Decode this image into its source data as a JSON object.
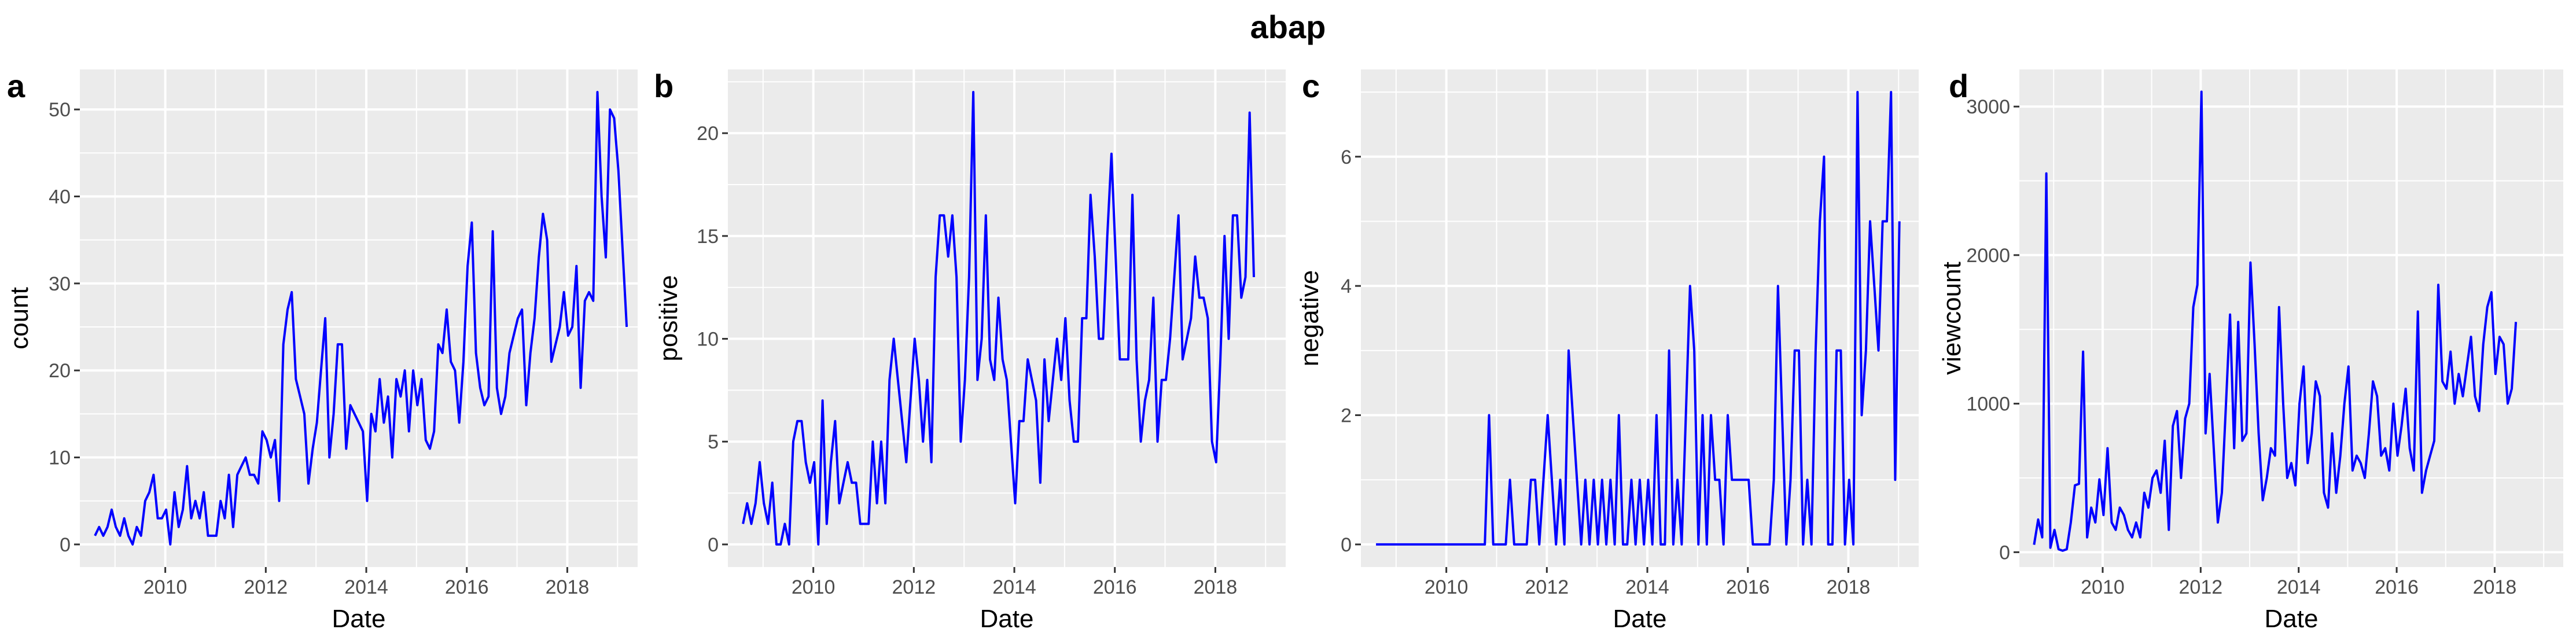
{
  "figure": {
    "title": "abap"
  },
  "chart_data": [
    {
      "type": "line",
      "panel_label": "a",
      "xlabel": "Date",
      "ylabel": "count",
      "x_unit": "year",
      "xlim": [
        2008.3,
        2019.4
      ],
      "ylim": [
        -2.6,
        54.6
      ],
      "x_ticks": [
        2010,
        2012,
        2014,
        2016,
        2018
      ],
      "x_tick_labels": [
        "2010",
        "2012",
        "2014",
        "2016",
        "2018"
      ],
      "y_ticks": [
        0,
        10,
        20,
        30,
        40,
        50
      ],
      "y_tick_labels": [
        "0",
        "10",
        "20",
        "30",
        "40",
        "50"
      ],
      "line_color": "#0000ff",
      "grid": true,
      "series": [
        {
          "x_start": 2008.6,
          "x_step": 0.08333,
          "values": [
            1,
            2,
            1,
            2,
            4,
            2,
            1,
            3,
            1,
            0,
            2,
            1,
            5,
            6,
            8,
            3,
            3,
            4,
            0,
            6,
            2,
            4,
            9,
            3,
            5,
            3,
            6,
            1,
            1,
            1,
            5,
            3,
            8,
            2,
            8,
            9,
            10,
            8,
            8,
            7,
            13,
            12,
            10,
            12,
            5,
            23,
            27,
            29,
            19,
            17,
            15,
            7,
            11,
            14,
            20,
            26,
            10,
            15,
            23,
            23,
            11,
            16,
            15,
            14,
            13,
            5,
            15,
            13,
            19,
            14,
            17,
            10,
            19,
            17,
            20,
            13,
            20,
            16,
            19,
            12,
            11,
            13,
            23,
            22,
            27,
            21,
            20,
            14,
            21,
            32,
            37,
            22,
            18,
            16,
            17,
            36,
            18,
            15,
            17,
            22,
            24,
            26,
            27,
            16,
            22,
            26,
            33,
            38,
            35,
            21,
            23,
            25,
            29,
            24,
            25,
            32,
            18,
            28,
            29,
            28,
            52,
            40,
            33,
            50,
            49,
            43,
            34,
            25
          ]
        }
      ]
    },
    {
      "type": "line",
      "panel_label": "b",
      "xlabel": "Date",
      "ylabel": "positive",
      "x_unit": "year",
      "xlim": [
        2008.3,
        2019.4
      ],
      "ylim": [
        -1.1,
        23.1
      ],
      "x_ticks": [
        2010,
        2012,
        2014,
        2016,
        2018
      ],
      "x_tick_labels": [
        "2010",
        "2012",
        "2014",
        "2016",
        "2018"
      ],
      "y_ticks": [
        0,
        5,
        10,
        15,
        20
      ],
      "y_tick_labels": [
        "0",
        "5",
        "10",
        "15",
        "20"
      ],
      "line_color": "#0000ff",
      "grid": true,
      "series": [
        {
          "x_start": 2008.6,
          "x_step": 0.08333,
          "values": [
            1,
            2,
            1,
            2,
            4,
            2,
            1,
            3,
            0,
            0,
            1,
            0,
            5,
            6,
            6,
            4,
            3,
            4,
            0,
            7,
            1,
            4,
            6,
            2,
            3,
            4,
            3,
            3,
            1,
            1,
            1,
            5,
            2,
            5,
            2,
            8,
            10,
            8,
            6,
            4,
            7,
            10,
            8,
            5,
            8,
            4,
            13,
            16,
            16,
            14,
            16,
            13,
            5,
            8,
            13,
            22,
            8,
            10,
            16,
            9,
            8,
            12,
            9,
            8,
            5,
            2,
            6,
            6,
            9,
            8,
            7,
            3,
            9,
            6,
            8,
            10,
            8,
            11,
            7,
            5,
            5,
            11,
            11,
            17,
            14,
            10,
            10,
            15,
            19,
            14,
            9,
            9,
            9,
            17,
            9,
            5,
            7,
            8,
            12,
            5,
            8,
            8,
            10,
            13,
            16,
            9,
            10,
            11,
            14,
            12,
            12,
            11,
            5,
            4,
            9,
            15,
            10,
            16,
            16,
            12,
            13,
            21,
            13
          ]
        }
      ]
    },
    {
      "type": "line",
      "panel_label": "c",
      "xlabel": "Date",
      "ylabel": "negative",
      "x_unit": "year",
      "xlim": [
        2008.3,
        2019.4
      ],
      "ylim": [
        -0.35,
        7.35
      ],
      "x_ticks": [
        2010,
        2012,
        2014,
        2016,
        2018
      ],
      "x_tick_labels": [
        "2010",
        "2012",
        "2014",
        "2016",
        "2018"
      ],
      "y_ticks": [
        0,
        2,
        4,
        6
      ],
      "y_tick_labels": [
        "0",
        "2",
        "4",
        "6"
      ],
      "line_color": "#0000ff",
      "grid": true,
      "series": [
        {
          "x_start": 2008.6,
          "x_step": 0.08333,
          "values": [
            0,
            0,
            0,
            0,
            0,
            0,
            0,
            0,
            0,
            0,
            0,
            0,
            0,
            0,
            0,
            0,
            0,
            0,
            0,
            0,
            0,
            0,
            0,
            0,
            0,
            0,
            0,
            2,
            0,
            0,
            0,
            0,
            1,
            0,
            0,
            0,
            0,
            1,
            1,
            0,
            1,
            2,
            1,
            0,
            1,
            0,
            3,
            2,
            1,
            0,
            1,
            0,
            1,
            0,
            1,
            0,
            1,
            0,
            2,
            0,
            0,
            1,
            0,
            1,
            0,
            1,
            0,
            2,
            0,
            0,
            3,
            0,
            1,
            0,
            2,
            4,
            3,
            0,
            2,
            0,
            2,
            1,
            1,
            0,
            2,
            1,
            1,
            1,
            1,
            1,
            0,
            0,
            0,
            0,
            0,
            1,
            4,
            2,
            0,
            1,
            3,
            3,
            0,
            1,
            0,
            3,
            5,
            6,
            0,
            0,
            3,
            3,
            0,
            1,
            0,
            7,
            2,
            3,
            5,
            4,
            3,
            5,
            5,
            7,
            1,
            5
          ]
        }
      ]
    },
    {
      "type": "line",
      "panel_label": "d",
      "xlabel": "Date",
      "ylabel": "viewcount",
      "x_unit": "year",
      "xlim": [
        2008.3,
        2019.4
      ],
      "ylim": [
        -100,
        3250
      ],
      "x_ticks": [
        2010,
        2012,
        2014,
        2016,
        2018
      ],
      "x_tick_labels": [
        "2010",
        "2012",
        "2014",
        "2016",
        "2018"
      ],
      "y_ticks": [
        0,
        1000,
        2000,
        3000
      ],
      "y_tick_labels": [
        "0",
        "1000",
        "2000",
        "3000"
      ],
      "line_color": "#0000ff",
      "grid": true,
      "series": [
        {
          "x_start": 2008.6,
          "x_step": 0.08333,
          "values": [
            50,
            220,
            100,
            2550,
            30,
            150,
            20,
            10,
            20,
            200,
            450,
            460,
            1350,
            100,
            300,
            200,
            490,
            250,
            700,
            200,
            150,
            300,
            250,
            150,
            100,
            200,
            100,
            400,
            300,
            500,
            550,
            400,
            750,
            150,
            850,
            950,
            500,
            900,
            1000,
            1650,
            1800,
            3100,
            800,
            1200,
            700,
            200,
            400,
            1000,
            1600,
            700,
            1550,
            750,
            800,
            1950,
            1400,
            800,
            350,
            500,
            700,
            650,
            1650,
            1000,
            500,
            600,
            450,
            1000,
            1250,
            600,
            800,
            1150,
            1050,
            400,
            300,
            800,
            400,
            650,
            1000,
            1250,
            550,
            650,
            600,
            500,
            800,
            1150,
            1050,
            650,
            700,
            550,
            1000,
            650,
            850,
            1100,
            700,
            550,
            1620,
            400,
            550,
            650,
            750,
            1800,
            1150,
            1100,
            1350,
            1000,
            1200,
            1050,
            1250,
            1450,
            1050,
            950,
            1400,
            1650,
            1750,
            1200,
            1450,
            1400,
            1000,
            1100,
            1550
          ]
        }
      ]
    }
  ]
}
